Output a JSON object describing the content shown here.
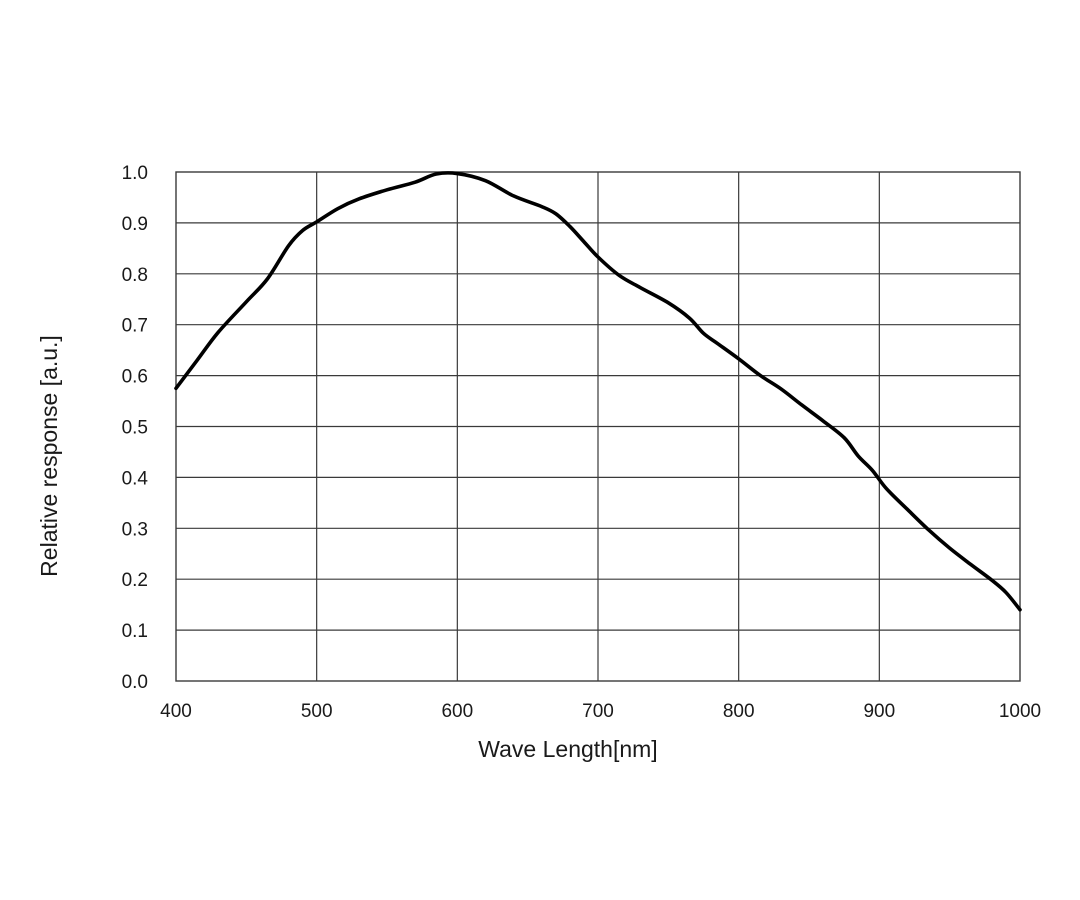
{
  "chart_data": {
    "type": "line",
    "title": "",
    "xlabel": "Wave Length[nm]",
    "ylabel": "Relative response [a.u.]",
    "xlim": [
      400,
      1000
    ],
    "ylim": [
      0.0,
      1.0
    ],
    "x_ticks": [
      "400",
      "500",
      "600",
      "700",
      "800",
      "900",
      "1000"
    ],
    "y_ticks": [
      "0.0",
      "0.1",
      "0.2",
      "0.3",
      "0.4",
      "0.5",
      "0.6",
      "0.7",
      "0.8",
      "0.9",
      "1.0"
    ],
    "grid": true,
    "legend": "none",
    "series": [
      {
        "color": "#000000",
        "x": [
          400,
          415,
          430,
          450,
          465,
          480,
          490,
          500,
          515,
          530,
          550,
          570,
          585,
          600,
          620,
          640,
          660,
          670,
          680,
          690,
          700,
          715,
          730,
          750,
          765,
          775,
          785,
          800,
          815,
          830,
          845,
          860,
          875,
          885,
          895,
          905,
          920,
          935,
          950,
          965,
          980,
          990,
          1000
        ],
        "y": [
          0.575,
          0.63,
          0.685,
          0.745,
          0.79,
          0.855,
          0.885,
          0.902,
          0.928,
          0.947,
          0.965,
          0.98,
          0.996,
          0.997,
          0.983,
          0.953,
          0.932,
          0.918,
          0.893,
          0.863,
          0.833,
          0.797,
          0.773,
          0.743,
          0.713,
          0.683,
          0.663,
          0.633,
          0.601,
          0.574,
          0.542,
          0.511,
          0.478,
          0.442,
          0.414,
          0.378,
          0.337,
          0.297,
          0.261,
          0.229,
          0.198,
          0.174,
          0.14
        ]
      }
    ]
  }
}
